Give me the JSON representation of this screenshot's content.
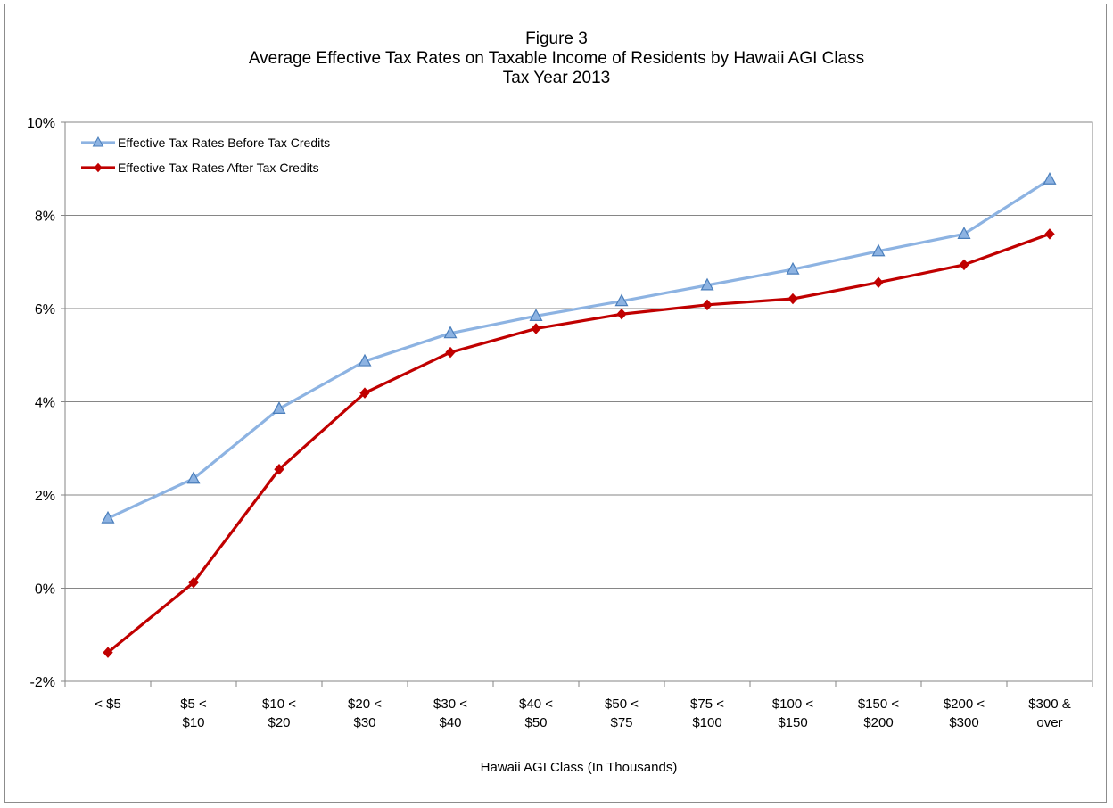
{
  "chart_data": {
    "type": "line",
    "title_lines": [
      "Figure 3",
      "Average Effective Tax Rates on Taxable Income of Residents by Hawaii AGI Class",
      "Tax Year 2013"
    ],
    "xlabel": "Hawaii AGI Class (In  Thousands)",
    "ylabel": "",
    "categories": [
      [
        "< $5"
      ],
      [
        "$5 <",
        "$10"
      ],
      [
        "$10 <",
        "$20"
      ],
      [
        "$20 <",
        "$30"
      ],
      [
        "$30 <",
        "$40"
      ],
      [
        "$40 <",
        "$50"
      ],
      [
        "$50 <",
        "$75"
      ],
      [
        "$75 <",
        "$100"
      ],
      [
        "$100 <",
        "$150"
      ],
      [
        "$150 <",
        "$200"
      ],
      [
        "$200 <",
        "$300"
      ],
      [
        "$300 &",
        "over"
      ]
    ],
    "ylim": [
      -2,
      10
    ],
    "yticks": [
      -2,
      0,
      2,
      4,
      6,
      8,
      10
    ],
    "ytick_labels": [
      "-2%",
      "0%",
      "2%",
      "4%",
      "6%",
      "8%",
      "10%"
    ],
    "grid": true,
    "legend_position": "top-left",
    "series": [
      {
        "name": "Effective Tax Rates Before Tax Credits",
        "values": [
          1.5,
          2.35,
          3.85,
          4.87,
          5.47,
          5.84,
          6.16,
          6.5,
          6.84,
          7.23,
          7.6,
          8.77
        ],
        "color": "#8db3e2",
        "marker_fill": "#8db3e2",
        "marker_stroke": "#4a7ebb",
        "marker": "triangle"
      },
      {
        "name": "Effective Tax Rates After Tax Credits",
        "values": [
          -1.38,
          0.12,
          2.55,
          4.19,
          5.06,
          5.57,
          5.88,
          6.08,
          6.21,
          6.56,
          6.94,
          7.6
        ],
        "color": "#c00000",
        "marker_fill": "#c00000",
        "marker_stroke": "#c00000",
        "marker": "diamond"
      }
    ]
  }
}
